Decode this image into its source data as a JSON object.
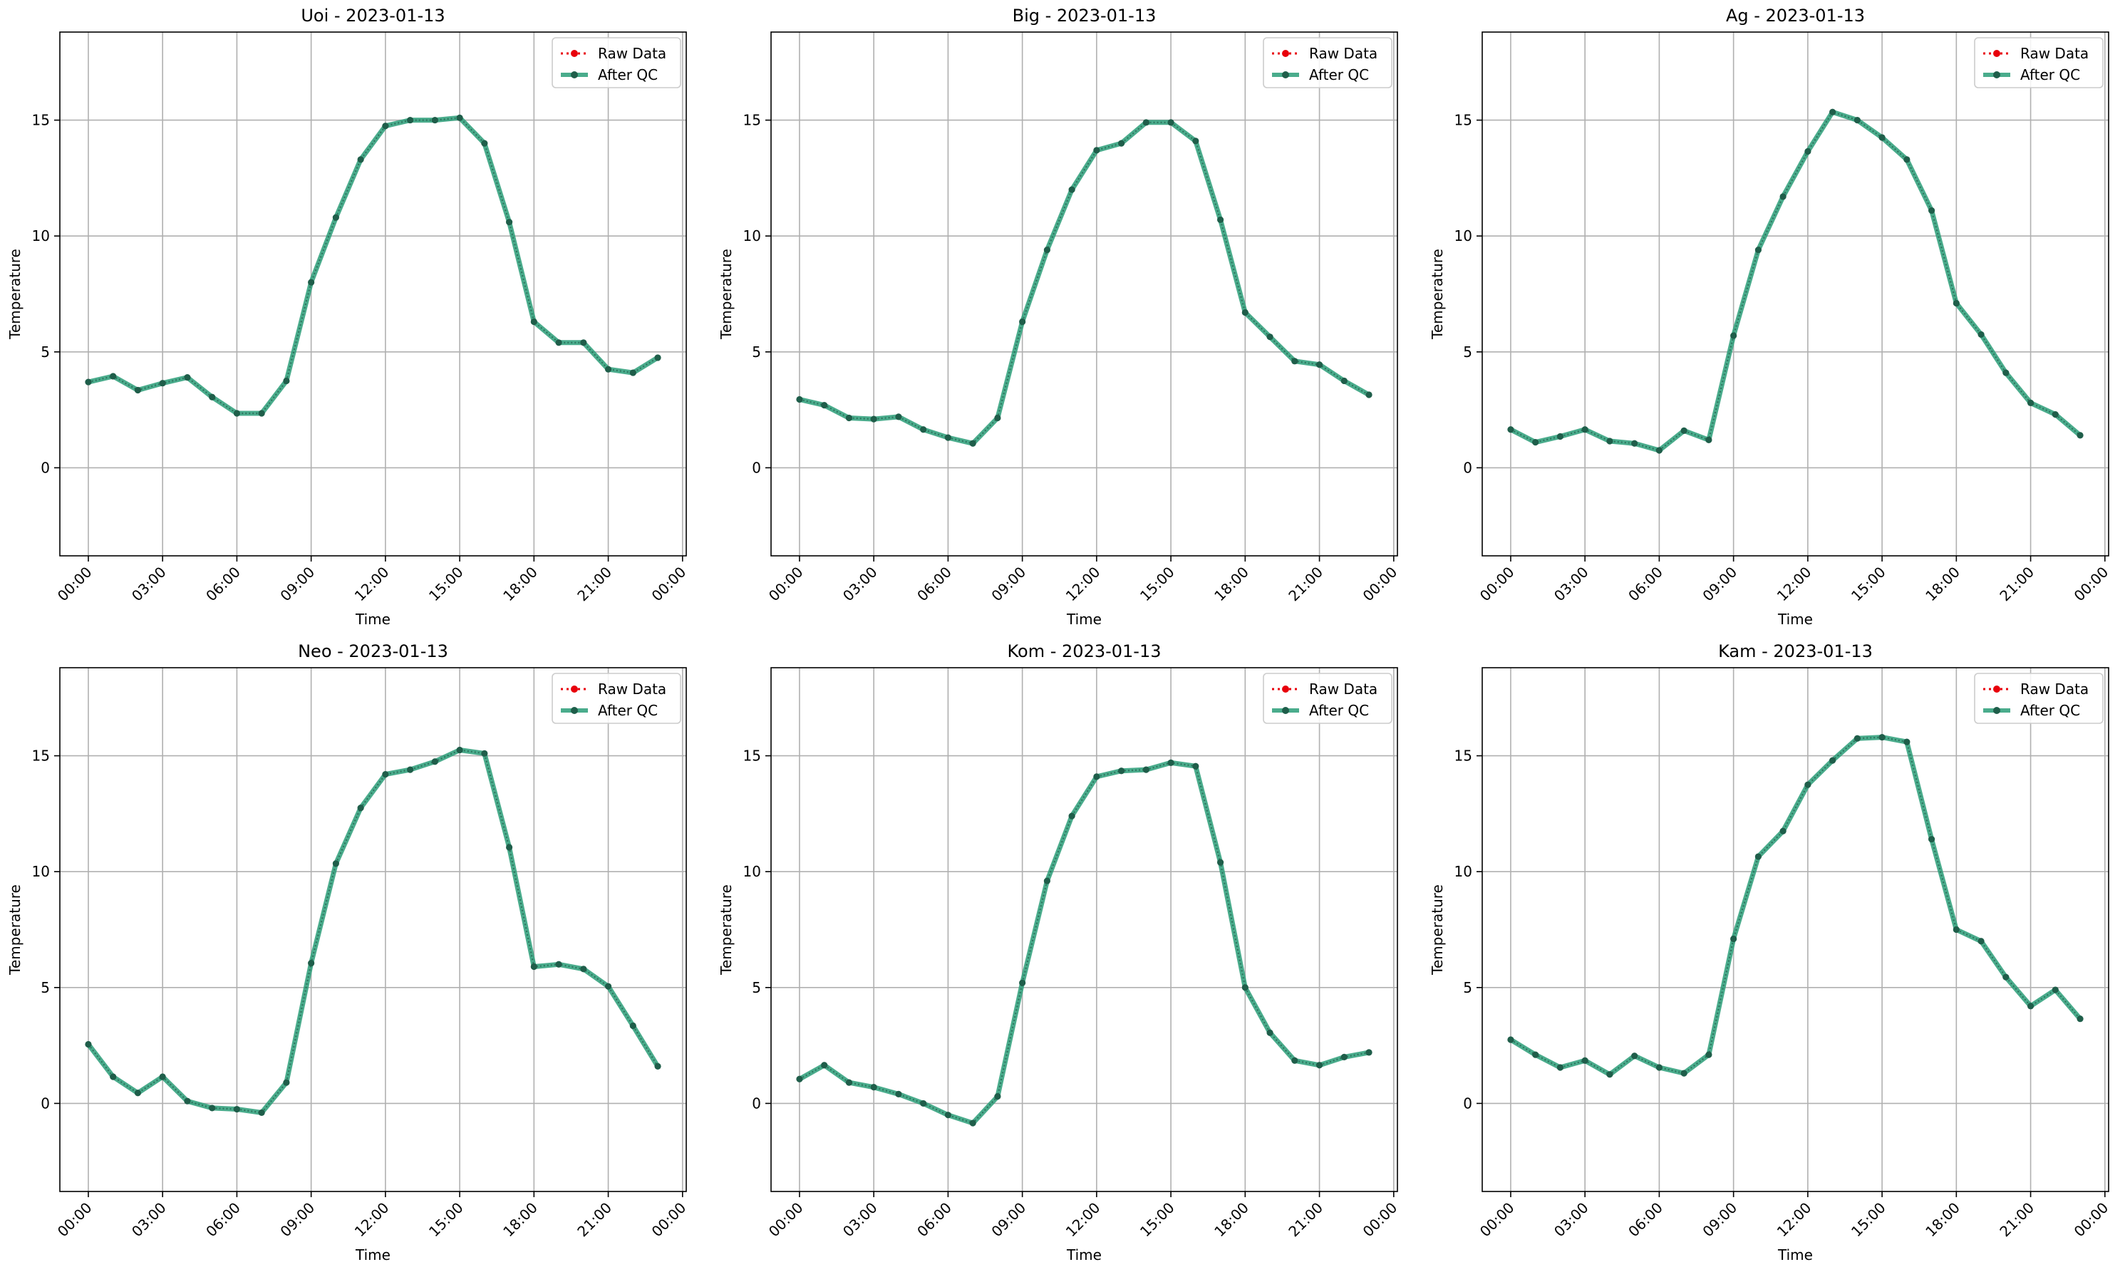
{
  "legend": {
    "raw_label": "Raw Data",
    "qc_label": "After QC"
  },
  "colors": {
    "raw": "#e8000b",
    "qc": "#2a9d78",
    "marker": "#1f5e4a",
    "grid": "#b0b0b0",
    "axis": "#000000"
  },
  "chart_data": [
    {
      "type": "line",
      "title": "Uoi - 2023-01-13",
      "xlabel": "Time",
      "ylabel": "Temperature",
      "xlim": [
        -1.15,
        24.15
      ],
      "ylim": [
        -3.8,
        18.8
      ],
      "grid": true,
      "legend_position": "upper-right",
      "x_ticks": [
        0,
        3,
        6,
        9,
        12,
        15,
        18,
        21,
        24
      ],
      "x_tick_labels": [
        "00:00",
        "03:00",
        "06:00",
        "09:00",
        "12:00",
        "15:00",
        "18:00",
        "21:00",
        "00:00"
      ],
      "y_ticks": [
        0,
        5,
        10,
        15
      ],
      "y_tick_labels": [
        "0",
        "5",
        "10",
        "15"
      ],
      "x": [
        0,
        1,
        2,
        3,
        4,
        5,
        6,
        7,
        8,
        9,
        10,
        11,
        12,
        13,
        14,
        15,
        16,
        17,
        18,
        19,
        20,
        21,
        22,
        23
      ],
      "series": [
        {
          "name": "Raw Data",
          "values": [
            3.7,
            3.95,
            3.35,
            3.65,
            3.9,
            3.05,
            2.35,
            2.35,
            3.75,
            8.0,
            10.8,
            13.3,
            14.75,
            15.0,
            15.0,
            15.1,
            14.0,
            10.6,
            6.3,
            5.4,
            5.4,
            4.25,
            4.1,
            4.75
          ]
        },
        {
          "name": "After QC",
          "values": [
            3.7,
            3.95,
            3.35,
            3.65,
            3.9,
            3.05,
            2.35,
            2.35,
            3.75,
            8.0,
            10.8,
            13.3,
            14.75,
            15.0,
            15.0,
            15.1,
            14.0,
            10.6,
            6.3,
            5.4,
            5.4,
            4.25,
            4.1,
            4.75
          ]
        }
      ]
    },
    {
      "type": "line",
      "title": "Big - 2023-01-13",
      "xlabel": "Time",
      "ylabel": "Temperature",
      "xlim": [
        -1.15,
        24.15
      ],
      "ylim": [
        -3.8,
        18.8
      ],
      "grid": true,
      "legend_position": "upper-right",
      "x_ticks": [
        0,
        3,
        6,
        9,
        12,
        15,
        18,
        21,
        24
      ],
      "x_tick_labels": [
        "00:00",
        "03:00",
        "06:00",
        "09:00",
        "12:00",
        "15:00",
        "18:00",
        "21:00",
        "00:00"
      ],
      "y_ticks": [
        0,
        5,
        10,
        15
      ],
      "y_tick_labels": [
        "0",
        "5",
        "10",
        "15"
      ],
      "x": [
        0,
        1,
        2,
        3,
        4,
        5,
        6,
        7,
        8,
        9,
        10,
        11,
        12,
        13,
        14,
        15,
        16,
        17,
        18,
        19,
        20,
        21,
        22,
        23
      ],
      "series": [
        {
          "name": "Raw Data",
          "values": [
            2.95,
            2.7,
            2.15,
            2.1,
            2.2,
            1.65,
            1.3,
            1.05,
            2.15,
            6.3,
            9.4,
            12.0,
            13.7,
            14.0,
            14.9,
            14.9,
            14.1,
            10.7,
            6.7,
            5.65,
            4.6,
            4.45,
            3.75,
            3.15
          ]
        },
        {
          "name": "After QC",
          "values": [
            2.95,
            2.7,
            2.15,
            2.1,
            2.2,
            1.65,
            1.3,
            1.05,
            2.15,
            6.3,
            9.4,
            12.0,
            13.7,
            14.0,
            14.9,
            14.9,
            14.1,
            10.7,
            6.7,
            5.65,
            4.6,
            4.45,
            3.75,
            3.15
          ]
        }
      ]
    },
    {
      "type": "line",
      "title": "Ag - 2023-01-13",
      "xlabel": "Time",
      "ylabel": "Temperature",
      "xlim": [
        -1.15,
        24.15
      ],
      "ylim": [
        -3.8,
        18.8
      ],
      "grid": true,
      "legend_position": "upper-right",
      "x_ticks": [
        0,
        3,
        6,
        9,
        12,
        15,
        18,
        21,
        24
      ],
      "x_tick_labels": [
        "00:00",
        "03:00",
        "06:00",
        "09:00",
        "12:00",
        "15:00",
        "18:00",
        "21:00",
        "00:00"
      ],
      "y_ticks": [
        0,
        5,
        10,
        15
      ],
      "y_tick_labels": [
        "0",
        "5",
        "10",
        "15"
      ],
      "x": [
        0,
        1,
        2,
        3,
        4,
        5,
        6,
        7,
        8,
        9,
        10,
        11,
        12,
        13,
        14,
        15,
        16,
        17,
        18,
        19,
        20,
        21,
        22,
        23
      ],
      "series": [
        {
          "name": "Raw Data",
          "values": [
            1.65,
            1.1,
            1.35,
            1.65,
            1.15,
            1.05,
            0.75,
            1.6,
            1.2,
            5.7,
            9.4,
            11.7,
            13.65,
            15.35,
            15.0,
            14.25,
            13.3,
            11.1,
            7.1,
            5.75,
            4.1,
            2.8,
            2.3,
            1.4
          ]
        },
        {
          "name": "After QC",
          "values": [
            1.65,
            1.1,
            1.35,
            1.65,
            1.15,
            1.05,
            0.75,
            1.6,
            1.2,
            5.7,
            9.4,
            11.7,
            13.65,
            15.35,
            15.0,
            14.25,
            13.3,
            11.1,
            7.1,
            5.75,
            4.1,
            2.8,
            2.3,
            1.4
          ]
        }
      ]
    },
    {
      "type": "line",
      "title": "Neo - 2023-01-13",
      "xlabel": "Time",
      "ylabel": "Temperature",
      "xlim": [
        -1.15,
        24.15
      ],
      "ylim": [
        -3.8,
        18.8
      ],
      "grid": true,
      "legend_position": "upper-right",
      "x_ticks": [
        0,
        3,
        6,
        9,
        12,
        15,
        18,
        21,
        24
      ],
      "x_tick_labels": [
        "00:00",
        "03:00",
        "06:00",
        "09:00",
        "12:00",
        "15:00",
        "18:00",
        "21:00",
        "00:00"
      ],
      "y_ticks": [
        0,
        5,
        10,
        15
      ],
      "y_tick_labels": [
        "0",
        "5",
        "10",
        "15"
      ],
      "x": [
        0,
        1,
        2,
        3,
        4,
        5,
        6,
        7,
        8,
        9,
        10,
        11,
        12,
        13,
        14,
        15,
        16,
        17,
        18,
        19,
        20,
        21,
        22,
        23
      ],
      "series": [
        {
          "name": "Raw Data",
          "values": [
            2.55,
            1.15,
            0.45,
            1.15,
            0.1,
            -0.2,
            -0.25,
            -0.4,
            0.9,
            6.05,
            10.35,
            12.75,
            14.2,
            14.4,
            14.75,
            15.25,
            15.1,
            11.05,
            5.9,
            6.0,
            5.8,
            5.05,
            3.35,
            1.6
          ]
        },
        {
          "name": "After QC",
          "values": [
            2.55,
            1.15,
            0.45,
            1.15,
            0.1,
            -0.2,
            -0.25,
            -0.4,
            0.9,
            6.05,
            10.35,
            12.75,
            14.2,
            14.4,
            14.75,
            15.25,
            15.1,
            11.05,
            5.9,
            6.0,
            5.8,
            5.05,
            3.35,
            1.6
          ]
        }
      ]
    },
    {
      "type": "line",
      "title": "Kom - 2023-01-13",
      "xlabel": "Time",
      "ylabel": "Temperature",
      "xlim": [
        -1.15,
        24.15
      ],
      "ylim": [
        -3.8,
        18.8
      ],
      "grid": true,
      "legend_position": "upper-right",
      "x_ticks": [
        0,
        3,
        6,
        9,
        12,
        15,
        18,
        21,
        24
      ],
      "x_tick_labels": [
        "00:00",
        "03:00",
        "06:00",
        "09:00",
        "12:00",
        "15:00",
        "18:00",
        "21:00",
        "00:00"
      ],
      "y_ticks": [
        0,
        5,
        10,
        15
      ],
      "y_tick_labels": [
        "0",
        "5",
        "10",
        "15"
      ],
      "x": [
        0,
        1,
        2,
        3,
        4,
        5,
        6,
        7,
        8,
        9,
        10,
        11,
        12,
        13,
        14,
        15,
        16,
        17,
        18,
        19,
        20,
        21,
        22,
        23
      ],
      "series": [
        {
          "name": "Raw Data",
          "values": [
            1.05,
            1.65,
            0.9,
            0.7,
            0.4,
            0.0,
            -0.5,
            -0.85,
            0.3,
            5.2,
            9.6,
            12.4,
            14.1,
            14.35,
            14.4,
            14.7,
            14.55,
            10.4,
            5.0,
            3.05,
            1.85,
            1.65,
            2.0,
            2.2
          ]
        },
        {
          "name": "After QC",
          "values": [
            1.05,
            1.65,
            0.9,
            0.7,
            0.4,
            0.0,
            -0.5,
            -0.85,
            0.3,
            5.2,
            9.6,
            12.4,
            14.1,
            14.35,
            14.4,
            14.7,
            14.55,
            10.4,
            5.0,
            3.05,
            1.85,
            1.65,
            2.0,
            2.2
          ]
        }
      ]
    },
    {
      "type": "line",
      "title": "Kam - 2023-01-13",
      "xlabel": "Time",
      "ylabel": "Temperature",
      "xlim": [
        -1.15,
        24.15
      ],
      "ylim": [
        -3.8,
        18.8
      ],
      "grid": true,
      "legend_position": "upper-right",
      "x_ticks": [
        0,
        3,
        6,
        9,
        12,
        15,
        18,
        21,
        24
      ],
      "x_tick_labels": [
        "00:00",
        "03:00",
        "06:00",
        "09:00",
        "12:00",
        "15:00",
        "18:00",
        "21:00",
        "00:00"
      ],
      "y_ticks": [
        0,
        5,
        10,
        15
      ],
      "y_tick_labels": [
        "0",
        "5",
        "10",
        "15"
      ],
      "x": [
        0,
        1,
        2,
        3,
        4,
        5,
        6,
        7,
        8,
        9,
        10,
        11,
        12,
        13,
        14,
        15,
        16,
        17,
        18,
        19,
        20,
        21,
        22,
        23
      ],
      "series": [
        {
          "name": "Raw Data",
          "values": [
            2.75,
            2.1,
            1.55,
            1.85,
            1.25,
            2.05,
            1.55,
            1.3,
            2.1,
            7.1,
            10.65,
            11.75,
            13.75,
            14.8,
            15.75,
            15.8,
            15.6,
            11.4,
            7.5,
            7.0,
            5.45,
            4.2,
            4.9,
            3.65
          ]
        },
        {
          "name": "After QC",
          "values": [
            2.75,
            2.1,
            1.55,
            1.85,
            1.25,
            2.05,
            1.55,
            1.3,
            2.1,
            7.1,
            10.65,
            11.75,
            13.75,
            14.8,
            15.75,
            15.8,
            15.6,
            11.4,
            7.5,
            7.0,
            5.45,
            4.2,
            4.9,
            3.65
          ]
        }
      ]
    }
  ]
}
